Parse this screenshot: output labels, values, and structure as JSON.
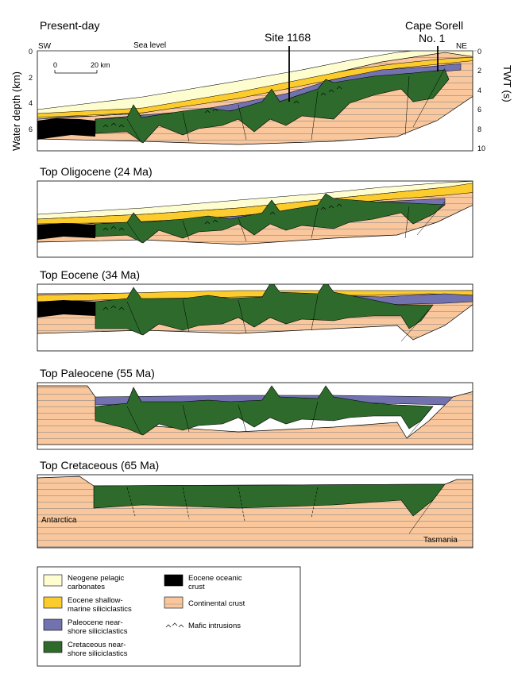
{
  "panels": [
    {
      "title": "Present-day"
    },
    {
      "title": "Top Oligocene (24 Ma)"
    },
    {
      "title": "Top Eocene (34 Ma)"
    },
    {
      "title": "Top Paleocene (55 Ma)"
    },
    {
      "title": "Top Cretaceous (65 Ma)"
    }
  ],
  "present_day": {
    "sw_label": "SW",
    "ne_label": "NE",
    "sea_level_label": "Sea level",
    "site_label": "Site 1168",
    "well_label_line1": "Cape Sorell",
    "well_label_line2": "No. 1",
    "left_axis_title": "Water depth (km)",
    "right_axis_title": "TWT (s)",
    "left_ticks": [
      "0",
      "2",
      "4",
      "6"
    ],
    "right_ticks": [
      "0",
      "2",
      "4",
      "6",
      "8",
      "10"
    ],
    "scale_start": "0",
    "scale_end": "20 km"
  },
  "cretaceous": {
    "left_label": "Antarctica",
    "right_label": "Tasmania"
  },
  "colors": {
    "neogene": "#fefdcf",
    "eocene_shallow": "#fccb2c",
    "paleocene": "#7272b0",
    "cretaceous": "#2e6a2c",
    "oceanic": "#000000",
    "continental": "#f9c79b"
  },
  "legend": {
    "neogene_l1": "Neogene pelagic",
    "neogene_l2": "carbonates",
    "eocene_l1": "Eocene shallow-",
    "eocene_l2": "marine siliciclastics",
    "paleocene_l1": "Paleocene near-",
    "paleocene_l2": "shore siliciclastics",
    "cretaceous_l1": "Cretaceous near-",
    "cretaceous_l2": "shore siliciclastics",
    "oceanic_l1": "Eocene oceanic",
    "oceanic_l2": "crust",
    "continental": "Continental crust",
    "mafic": "Mafic intrusions"
  }
}
